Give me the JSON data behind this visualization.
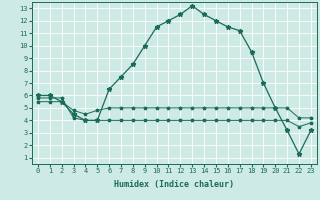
{
  "title": "",
  "xlabel": "Humidex (Indice chaleur)",
  "xlim": [
    -0.5,
    23.5
  ],
  "ylim": [
    0.5,
    13.5
  ],
  "yticks": [
    1,
    2,
    3,
    4,
    5,
    6,
    7,
    8,
    9,
    10,
    11,
    12,
    13
  ],
  "xticks": [
    0,
    1,
    2,
    3,
    4,
    5,
    6,
    7,
    8,
    9,
    10,
    11,
    12,
    13,
    14,
    15,
    16,
    17,
    18,
    19,
    20,
    21,
    22,
    23
  ],
  "bg_color": "#ceeae4",
  "grid_color": "#ffffff",
  "line_color": "#1a6b5a",
  "line1_x": [
    0,
    1,
    2,
    3,
    4,
    5,
    6,
    7,
    8,
    9,
    10,
    11,
    12,
    13,
    14,
    15,
    16,
    17,
    18,
    19,
    20,
    21,
    22,
    23
  ],
  "line1_y": [
    6.0,
    6.0,
    5.5,
    4.5,
    4.0,
    4.0,
    6.5,
    7.5,
    8.5,
    10.0,
    11.5,
    12.0,
    12.5,
    13.2,
    12.5,
    12.0,
    11.5,
    11.2,
    9.5,
    7.0,
    5.0,
    3.2,
    1.3,
    3.2
  ],
  "line2_x": [
    0,
    1,
    2,
    3,
    4,
    5,
    6,
    7,
    8,
    9,
    10,
    11,
    12,
    13,
    14,
    15,
    16,
    17,
    18,
    19,
    20,
    21,
    22,
    23
  ],
  "line2_y": [
    5.5,
    5.5,
    5.5,
    4.8,
    4.5,
    4.8,
    5.0,
    5.0,
    5.0,
    5.0,
    5.0,
    5.0,
    5.0,
    5.0,
    5.0,
    5.0,
    5.0,
    5.0,
    5.0,
    5.0,
    5.0,
    5.0,
    4.2,
    4.2
  ],
  "line3_x": [
    0,
    1,
    2,
    3,
    4,
    5,
    6,
    7,
    8,
    9,
    10,
    11,
    12,
    13,
    14,
    15,
    16,
    17,
    18,
    19,
    20,
    21,
    22,
    23
  ],
  "line3_y": [
    5.8,
    5.8,
    5.8,
    4.2,
    4.0,
    4.0,
    4.0,
    4.0,
    4.0,
    4.0,
    4.0,
    4.0,
    4.0,
    4.0,
    4.0,
    4.0,
    4.0,
    4.0,
    4.0,
    4.0,
    4.0,
    4.0,
    3.5,
    3.8
  ]
}
